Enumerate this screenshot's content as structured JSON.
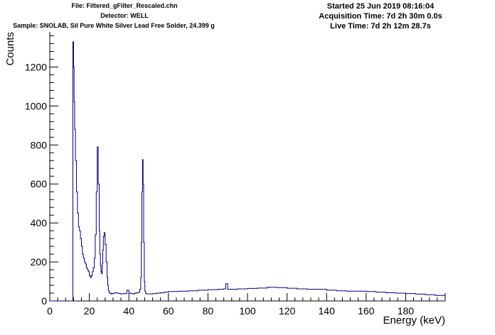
{
  "header": {
    "file": "File: Filtered_gFilter_Rescaled.chn",
    "detector": "Detector: WELL",
    "sample": "Sample: SNOLAB, Sil Pure White Silver Lead Free Solder, 24.399 g",
    "started": "Started 25 Jun 2019 08:16:04",
    "acquisition_time": "Acquisition Time: 7d 2h 30m 0.0s",
    "live_time": "Live Time: 7d 2h 12m 28.7s"
  },
  "colors": {
    "histogram": "#000080",
    "axis": "#000000"
  },
  "chart_data": {
    "type": "line",
    "title": "",
    "xlabel": "Energy (keV)",
    "ylabel": "Counts",
    "xlim": [
      0,
      200
    ],
    "ylim": [
      0,
      1380
    ],
    "x_ticks": [
      0,
      20,
      40,
      60,
      80,
      100,
      120,
      140,
      160,
      180
    ],
    "x_tick_labels": [
      "0",
      "20",
      "40",
      "60",
      "80",
      "100",
      "120",
      "140",
      "160",
      "180"
    ],
    "y_ticks": [
      0,
      200,
      400,
      600,
      800,
      1000,
      1200
    ],
    "y_tick_labels": [
      "0",
      "200",
      "400",
      "600",
      "800",
      "1000",
      "1200"
    ],
    "grid": false,
    "legend": "none",
    "series": [
      {
        "x": [
          0,
          11.6,
          11.7,
          12.0,
          12.3,
          12.6,
          13.0,
          13.5,
          14.0,
          14.5,
          15.0,
          15.5,
          16.0,
          16.5,
          17.0,
          17.5,
          18.0,
          18.5,
          19.0,
          19.5,
          20.0,
          20.5,
          21.0,
          21.5,
          22.0,
          22.5,
          23.0,
          23.5,
          24.0,
          24.5,
          25.0,
          25.3,
          25.6,
          25.9,
          26.2,
          26.5,
          26.8,
          27.1,
          27.5,
          28.0,
          28.5,
          29.0,
          29.3,
          29.6,
          29.9,
          30.3,
          30.7,
          31.1,
          31.6,
          32.2,
          33,
          34,
          35,
          36,
          37,
          38,
          39,
          40,
          41,
          42,
          43,
          44,
          45,
          45.5,
          46.0,
          46.3,
          46.6,
          46.9,
          47.2,
          47.5,
          47.8,
          48.1,
          48.5,
          49,
          50,
          52,
          54,
          56,
          58,
          60,
          65,
          70,
          75,
          80,
          85,
          88,
          89,
          90,
          95,
          100,
          105,
          110,
          115,
          120,
          125,
          130,
          135,
          140,
          145,
          150,
          155,
          160,
          165,
          170,
          175,
          180,
          185,
          190,
          195,
          200
        ],
        "y": [
          0,
          0,
          1330,
          1200,
          1020,
          880,
          720,
          560,
          450,
          380,
          360,
          320,
          280,
          240,
          220,
          200,
          190,
          170,
          160,
          150,
          130,
          120,
          130,
          150,
          170,
          220,
          340,
          560,
          790,
          600,
          360,
          240,
          180,
          150,
          140,
          190,
          260,
          330,
          350,
          290,
          200,
          120,
          80,
          55,
          45,
          40,
          38,
          36,
          38,
          40,
          42,
          40,
          38,
          36,
          37,
          38,
          55,
          40,
          38,
          36,
          40,
          42,
          45,
          60,
          120,
          300,
          560,
          725,
          600,
          300,
          100,
          50,
          38,
          36,
          36,
          38,
          40,
          42,
          45,
          48,
          50,
          52,
          55,
          58,
          60,
          62,
          88,
          60,
          62,
          64,
          66,
          70,
          68,
          65,
          62,
          60,
          60,
          55,
          52,
          50,
          50,
          48,
          45,
          42,
          40,
          38,
          35,
          32,
          28,
          25
        ]
      }
    ]
  }
}
